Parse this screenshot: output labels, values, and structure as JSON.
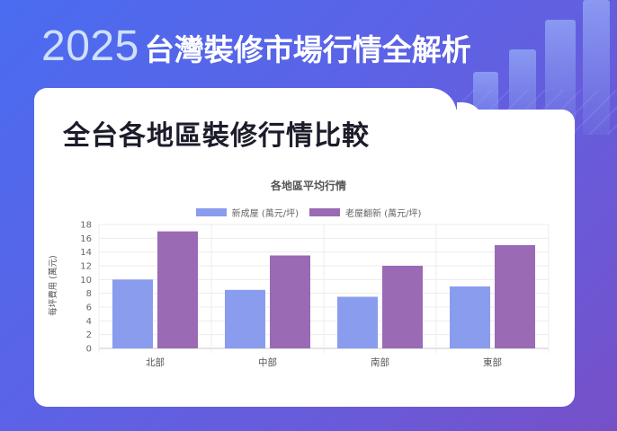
{
  "hero": {
    "year": "2025",
    "title": "台灣裝修市場行情全解析"
  },
  "section": {
    "title": "全台各地區裝修行情比較"
  },
  "colors": {
    "new_house": "#8a9cee",
    "old_renovation": "#9a6ab5"
  },
  "chart_data": {
    "type": "bar",
    "title": "各地區平均行情",
    "categories": [
      "北部",
      "中部",
      "南部",
      "東部"
    ],
    "series": [
      {
        "name": "新成屋 (萬元/坪)",
        "values": [
          10,
          8.5,
          7.5,
          9
        ]
      },
      {
        "name": "老屋翻新 (萬元/坪)",
        "values": [
          17,
          13.5,
          12,
          15
        ]
      }
    ],
    "xlabel": "",
    "ylabel": "每坪費用 (萬元)",
    "ylim": [
      0,
      18
    ],
    "yticks": [
      0,
      2,
      4,
      6,
      8,
      10,
      12,
      14,
      16,
      18
    ],
    "grid": true,
    "legend": "top"
  }
}
